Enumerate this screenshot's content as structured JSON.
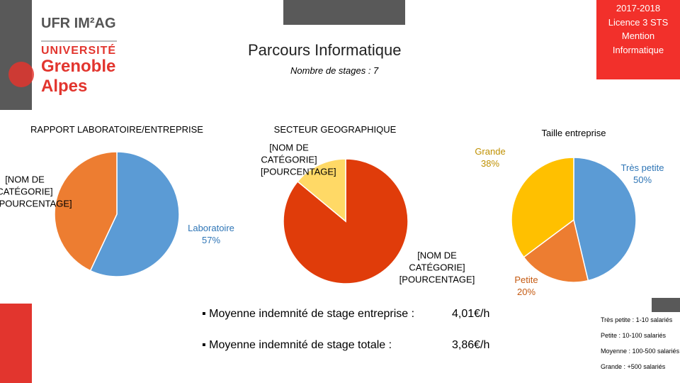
{
  "header": {
    "logo_ufr": "UFR IM²AG",
    "logo_univ": "UNIVERSITÉ",
    "logo_city": "Grenoble",
    "logo_region": "Alpes",
    "title": "Parcours Informatique",
    "subtitle": "Nombre de stages : 7",
    "badge": [
      "2017-2018",
      "Licence 3 STS",
      "Mention",
      "Informatique"
    ]
  },
  "chart_data": [
    {
      "type": "pie",
      "title": "RAPPORT LABORATOIRE/ENTREPRISE",
      "categories": [
        "Laboratoire",
        "[NOM DE CATÉGORIE]"
      ],
      "values": [
        57,
        43
      ],
      "value_labels": [
        "57%",
        "[POURCENTAGE]"
      ],
      "colors": [
        "#5b9bd5",
        "#ed7d31"
      ],
      "label_colors": [
        "#2e75b6",
        "#000000"
      ]
    },
    {
      "type": "pie",
      "title": "SECTEUR GEOGRAPHIQUE",
      "categories": [
        "[NOM DE CATÉGORIE]",
        "[NOM DE CATÉGORIE]"
      ],
      "values": [
        86,
        14
      ],
      "value_labels": [
        "[POURCENTAGE]",
        "[POURCENTAGE]"
      ],
      "colors": [
        "#e03c0a",
        "#ffd966"
      ],
      "label_colors": [
        "#000000",
        "#000000"
      ]
    },
    {
      "type": "pie",
      "title": "Taille entreprise",
      "categories": [
        "Très petite",
        "Petite",
        "Grande"
      ],
      "values": [
        50,
        20,
        38
      ],
      "value_labels": [
        "50%",
        "20%",
        "38%"
      ],
      "colors": [
        "#5b9bd5",
        "#ed7d31",
        "#ffc000"
      ],
      "label_colors": [
        "#2e75b6",
        "#c55a11",
        "#bf9000"
      ]
    }
  ],
  "stats": [
    {
      "label": "Moyenne indemnité de stage entreprise :",
      "value": "4,01€/h"
    },
    {
      "label": "Moyenne indemnité de stage totale :",
      "value": "3,86€/h"
    }
  ],
  "size_legend": [
    "Très petite : 1-10 salariés",
    "Petite : 10-100 salariés",
    "Moyenne : 100-500 salariés",
    "Grande : +500 salariés"
  ]
}
